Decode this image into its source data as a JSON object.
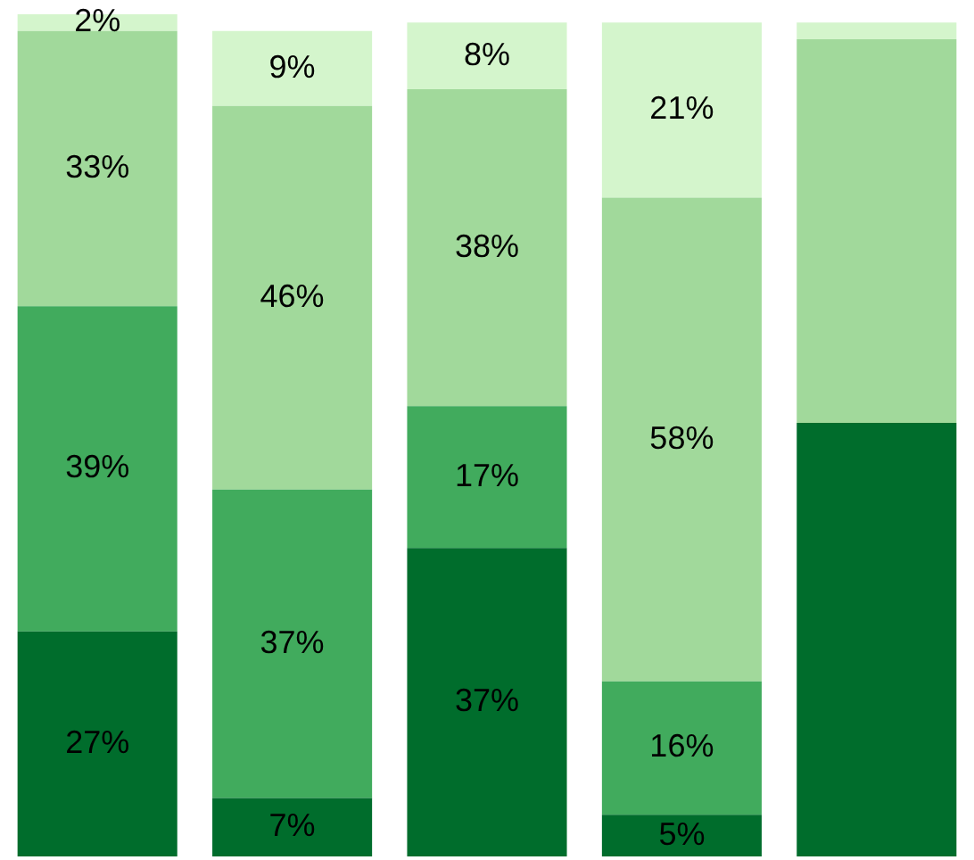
{
  "chart_data": {
    "type": "bar",
    "stacked": true,
    "categories": [
      null,
      null,
      null,
      null,
      null
    ],
    "tick_labels": false,
    "legend": false,
    "series": [
      {
        "color": "#006d2c",
        "values": [
          27,
          7,
          37,
          5,
          52
        ],
        "value_labels": [
          "27%",
          "7%",
          "37%",
          "5%",
          null
        ]
      },
      {
        "color": "#41ab5d",
        "values": [
          39,
          37,
          17,
          16,
          null
        ],
        "value_labels": [
          "39%",
          "37%",
          "17%",
          "16%",
          null
        ]
      },
      {
        "color": "#a1d99b",
        "values": [
          33,
          46,
          38,
          58,
          46
        ],
        "value_labels": [
          "33%",
          "46%",
          "38%",
          "58%",
          null
        ]
      },
      {
        "color": "#d4f5cc",
        "values": [
          2,
          9,
          8,
          21,
          2
        ],
        "value_labels": [
          "2%",
          "9%",
          "8%",
          "21%",
          null
        ]
      }
    ]
  }
}
